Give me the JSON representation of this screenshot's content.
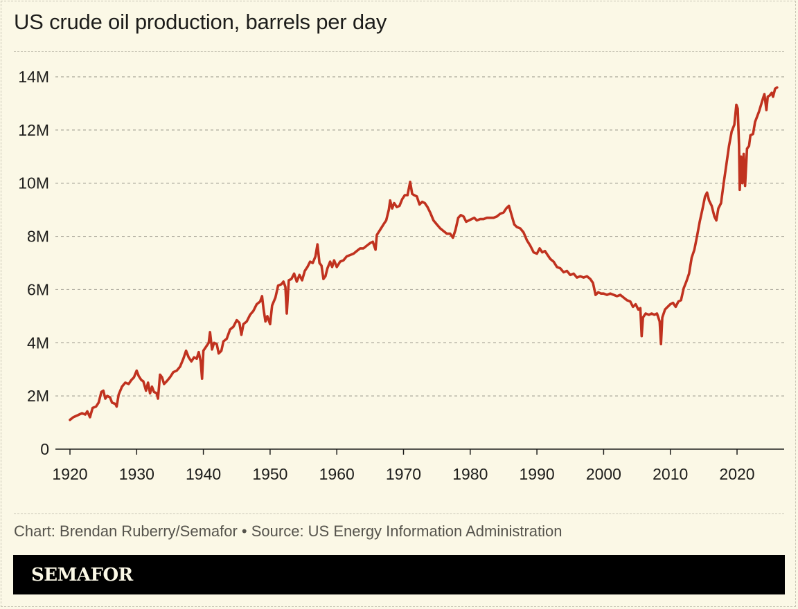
{
  "header": {
    "title": "US crude oil production, barrels per day"
  },
  "footer": {
    "credit": "Chart: Brendan Ruberry/Semafor • Source: US Energy Information Administration",
    "brand": "SEMAFOR"
  },
  "colors": {
    "background": "#fbf8e6",
    "line": "#c0321f",
    "text": "#1d1d1b",
    "gridline": "#aaa79a",
    "brand_bar": "#000000"
  },
  "chart_data": {
    "type": "line",
    "title": "US crude oil production, barrels per day",
    "xlabel": "",
    "ylabel": "",
    "xlim": [
      1918,
      2027
    ],
    "ylim": [
      0,
      14
    ],
    "y_unit": "millions of barrels per day",
    "grid": true,
    "legend": "none",
    "x_ticks": [
      1920,
      1930,
      1940,
      1950,
      1960,
      1970,
      1980,
      1990,
      2000,
      2010,
      2020
    ],
    "x_tick_labels": [
      "1920",
      "1930",
      "1940",
      "1950",
      "1960",
      "1970",
      "1980",
      "1990",
      "2000",
      "2010",
      "2020"
    ],
    "y_ticks": [
      0,
      2,
      4,
      6,
      8,
      10,
      12,
      14
    ],
    "y_tick_labels": [
      "0",
      "2M",
      "4M",
      "6M",
      "8M",
      "10M",
      "12M",
      "14M"
    ],
    "series": [
      {
        "name": "US crude oil production",
        "points": [
          [
            1920.0,
            1.1
          ],
          [
            1920.5,
            1.2
          ],
          [
            1921.2,
            1.28
          ],
          [
            1921.8,
            1.35
          ],
          [
            1922.3,
            1.3
          ],
          [
            1922.6,
            1.42
          ],
          [
            1923.0,
            1.2
          ],
          [
            1923.4,
            1.55
          ],
          [
            1923.9,
            1.6
          ],
          [
            1924.3,
            1.75
          ],
          [
            1924.7,
            2.15
          ],
          [
            1925.0,
            2.2
          ],
          [
            1925.3,
            1.9
          ],
          [
            1925.6,
            2.0
          ],
          [
            1926.0,
            1.95
          ],
          [
            1926.3,
            1.75
          ],
          [
            1926.8,
            1.7
          ],
          [
            1927.0,
            1.6
          ],
          [
            1927.3,
            2.05
          ],
          [
            1927.8,
            2.35
          ],
          [
            1928.3,
            2.5
          ],
          [
            1928.8,
            2.45
          ],
          [
            1929.2,
            2.6
          ],
          [
            1929.6,
            2.7
          ],
          [
            1930.0,
            2.95
          ],
          [
            1930.3,
            2.75
          ],
          [
            1930.7,
            2.6
          ],
          [
            1931.0,
            2.55
          ],
          [
            1931.4,
            2.2
          ],
          [
            1931.7,
            2.5
          ],
          [
            1932.0,
            2.1
          ],
          [
            1932.3,
            2.35
          ],
          [
            1932.6,
            2.15
          ],
          [
            1933.0,
            2.1
          ],
          [
            1933.2,
            1.9
          ],
          [
            1933.5,
            2.8
          ],
          [
            1933.8,
            2.7
          ],
          [
            1934.1,
            2.45
          ],
          [
            1934.5,
            2.55
          ],
          [
            1935.0,
            2.7
          ],
          [
            1935.5,
            2.9
          ],
          [
            1936.0,
            2.95
          ],
          [
            1936.5,
            3.1
          ],
          [
            1937.0,
            3.4
          ],
          [
            1937.4,
            3.7
          ],
          [
            1937.8,
            3.45
          ],
          [
            1938.2,
            3.3
          ],
          [
            1938.6,
            3.45
          ],
          [
            1939.0,
            3.4
          ],
          [
            1939.3,
            3.65
          ],
          [
            1939.6,
            3.3
          ],
          [
            1939.8,
            2.65
          ],
          [
            1940.0,
            3.7
          ],
          [
            1940.4,
            3.85
          ],
          [
            1940.8,
            4.0
          ],
          [
            1941.0,
            4.4
          ],
          [
            1941.3,
            3.75
          ],
          [
            1941.6,
            4.0
          ],
          [
            1942.0,
            3.95
          ],
          [
            1942.3,
            3.6
          ],
          [
            1942.7,
            3.7
          ],
          [
            1943.0,
            4.05
          ],
          [
            1943.5,
            4.15
          ],
          [
            1944.0,
            4.5
          ],
          [
            1944.5,
            4.6
          ],
          [
            1945.0,
            4.85
          ],
          [
            1945.4,
            4.75
          ],
          [
            1945.7,
            4.3
          ],
          [
            1946.0,
            4.7
          ],
          [
            1946.5,
            4.8
          ],
          [
            1947.0,
            5.05
          ],
          [
            1947.5,
            5.2
          ],
          [
            1948.0,
            5.45
          ],
          [
            1948.5,
            5.55
          ],
          [
            1948.8,
            5.75
          ],
          [
            1949.0,
            5.3
          ],
          [
            1949.3,
            4.8
          ],
          [
            1949.6,
            5.0
          ],
          [
            1950.0,
            4.7
          ],
          [
            1950.3,
            5.4
          ],
          [
            1950.8,
            5.7
          ],
          [
            1951.2,
            6.15
          ],
          [
            1951.7,
            6.2
          ],
          [
            1952.0,
            6.3
          ],
          [
            1952.3,
            6.1
          ],
          [
            1952.5,
            5.1
          ],
          [
            1952.8,
            6.35
          ],
          [
            1953.2,
            6.4
          ],
          [
            1953.6,
            6.6
          ],
          [
            1954.0,
            6.3
          ],
          [
            1954.4,
            6.55
          ],
          [
            1954.8,
            6.35
          ],
          [
            1955.2,
            6.7
          ],
          [
            1955.6,
            6.85
          ],
          [
            1956.0,
            7.05
          ],
          [
            1956.4,
            7.0
          ],
          [
            1956.8,
            7.25
          ],
          [
            1957.1,
            7.7
          ],
          [
            1957.4,
            7.0
          ],
          [
            1957.7,
            6.9
          ],
          [
            1958.0,
            6.4
          ],
          [
            1958.3,
            6.5
          ],
          [
            1958.6,
            6.8
          ],
          [
            1959.0,
            7.05
          ],
          [
            1959.3,
            6.85
          ],
          [
            1959.6,
            7.1
          ],
          [
            1960.0,
            6.85
          ],
          [
            1960.5,
            7.05
          ],
          [
            1961.0,
            7.1
          ],
          [
            1961.5,
            7.25
          ],
          [
            1962.0,
            7.3
          ],
          [
            1962.5,
            7.35
          ],
          [
            1963.0,
            7.45
          ],
          [
            1963.5,
            7.55
          ],
          [
            1964.0,
            7.55
          ],
          [
            1964.5,
            7.65
          ],
          [
            1965.0,
            7.75
          ],
          [
            1965.4,
            7.8
          ],
          [
            1965.8,
            7.5
          ],
          [
            1966.0,
            8.05
          ],
          [
            1966.5,
            8.25
          ],
          [
            1967.0,
            8.45
          ],
          [
            1967.4,
            8.6
          ],
          [
            1967.8,
            9.0
          ],
          [
            1968.0,
            9.35
          ],
          [
            1968.3,
            9.05
          ],
          [
            1968.6,
            9.25
          ],
          [
            1969.0,
            9.1
          ],
          [
            1969.4,
            9.15
          ],
          [
            1969.8,
            9.4
          ],
          [
            1970.2,
            9.55
          ],
          [
            1970.6,
            9.55
          ],
          [
            1971.0,
            10.05
          ],
          [
            1971.3,
            9.6
          ],
          [
            1971.6,
            9.55
          ],
          [
            1972.0,
            9.5
          ],
          [
            1972.4,
            9.2
          ],
          [
            1972.8,
            9.3
          ],
          [
            1973.2,
            9.25
          ],
          [
            1973.6,
            9.1
          ],
          [
            1974.0,
            8.9
          ],
          [
            1974.5,
            8.6
          ],
          [
            1975.0,
            8.45
          ],
          [
            1975.5,
            8.3
          ],
          [
            1976.0,
            8.2
          ],
          [
            1976.5,
            8.1
          ],
          [
            1977.0,
            8.1
          ],
          [
            1977.4,
            7.95
          ],
          [
            1977.8,
            8.25
          ],
          [
            1978.2,
            8.7
          ],
          [
            1978.6,
            8.8
          ],
          [
            1979.0,
            8.75
          ],
          [
            1979.4,
            8.55
          ],
          [
            1979.8,
            8.6
          ],
          [
            1980.2,
            8.65
          ],
          [
            1980.6,
            8.7
          ],
          [
            1981.0,
            8.6
          ],
          [
            1981.5,
            8.65
          ],
          [
            1982.0,
            8.65
          ],
          [
            1982.5,
            8.7
          ],
          [
            1983.0,
            8.7
          ],
          [
            1983.5,
            8.7
          ],
          [
            1984.0,
            8.75
          ],
          [
            1984.5,
            8.85
          ],
          [
            1985.0,
            8.9
          ],
          [
            1985.4,
            9.05
          ],
          [
            1985.8,
            9.15
          ],
          [
            1986.2,
            8.8
          ],
          [
            1986.6,
            8.45
          ],
          [
            1987.0,
            8.35
          ],
          [
            1987.5,
            8.3
          ],
          [
            1988.0,
            8.15
          ],
          [
            1988.5,
            7.85
          ],
          [
            1989.0,
            7.65
          ],
          [
            1989.5,
            7.4
          ],
          [
            1990.0,
            7.35
          ],
          [
            1990.4,
            7.55
          ],
          [
            1990.8,
            7.4
          ],
          [
            1991.2,
            7.45
          ],
          [
            1991.6,
            7.3
          ],
          [
            1992.0,
            7.15
          ],
          [
            1992.5,
            7.05
          ],
          [
            1993.0,
            6.85
          ],
          [
            1993.5,
            6.8
          ],
          [
            1994.0,
            6.65
          ],
          [
            1994.5,
            6.7
          ],
          [
            1995.0,
            6.55
          ],
          [
            1995.5,
            6.6
          ],
          [
            1996.0,
            6.45
          ],
          [
            1996.5,
            6.5
          ],
          [
            1997.0,
            6.45
          ],
          [
            1997.5,
            6.5
          ],
          [
            1998.0,
            6.4
          ],
          [
            1998.4,
            6.25
          ],
          [
            1998.8,
            5.8
          ],
          [
            1999.2,
            5.9
          ],
          [
            1999.6,
            5.85
          ],
          [
            2000.0,
            5.85
          ],
          [
            2000.5,
            5.8
          ],
          [
            2001.0,
            5.85
          ],
          [
            2001.5,
            5.8
          ],
          [
            2002.0,
            5.75
          ],
          [
            2002.5,
            5.8
          ],
          [
            2003.0,
            5.7
          ],
          [
            2003.5,
            5.6
          ],
          [
            2004.0,
            5.55
          ],
          [
            2004.4,
            5.35
          ],
          [
            2004.8,
            5.45
          ],
          [
            2005.2,
            5.25
          ],
          [
            2005.5,
            5.3
          ],
          [
            2005.7,
            4.25
          ],
          [
            2005.9,
            4.95
          ],
          [
            2006.3,
            5.1
          ],
          [
            2006.8,
            5.05
          ],
          [
            2007.2,
            5.1
          ],
          [
            2007.6,
            5.05
          ],
          [
            2008.0,
            5.1
          ],
          [
            2008.4,
            4.8
          ],
          [
            2008.6,
            3.95
          ],
          [
            2008.8,
            4.95
          ],
          [
            2009.2,
            5.25
          ],
          [
            2009.6,
            5.35
          ],
          [
            2010.0,
            5.45
          ],
          [
            2010.4,
            5.5
          ],
          [
            2010.8,
            5.35
          ],
          [
            2011.2,
            5.55
          ],
          [
            2011.6,
            5.6
          ],
          [
            2012.0,
            6.05
          ],
          [
            2012.4,
            6.3
          ],
          [
            2012.8,
            6.6
          ],
          [
            2013.2,
            7.2
          ],
          [
            2013.6,
            7.5
          ],
          [
            2014.0,
            8.0
          ],
          [
            2014.4,
            8.55
          ],
          [
            2014.8,
            9.0
          ],
          [
            2015.2,
            9.5
          ],
          [
            2015.5,
            9.65
          ],
          [
            2015.8,
            9.35
          ],
          [
            2016.2,
            9.15
          ],
          [
            2016.6,
            8.75
          ],
          [
            2016.9,
            8.6
          ],
          [
            2017.2,
            9.05
          ],
          [
            2017.6,
            9.25
          ],
          [
            2018.0,
            10.0
          ],
          [
            2018.4,
            10.7
          ],
          [
            2018.8,
            11.4
          ],
          [
            2019.2,
            11.95
          ],
          [
            2019.6,
            12.2
          ],
          [
            2019.9,
            12.95
          ],
          [
            2020.1,
            12.8
          ],
          [
            2020.3,
            11.4
          ],
          [
            2020.4,
            9.75
          ],
          [
            2020.6,
            11.0
          ],
          [
            2020.8,
            10.0
          ],
          [
            2021.0,
            11.1
          ],
          [
            2021.2,
            9.9
          ],
          [
            2021.5,
            11.3
          ],
          [
            2021.8,
            11.4
          ],
          [
            2022.0,
            11.8
          ],
          [
            2022.4,
            11.85
          ],
          [
            2022.7,
            12.3
          ],
          [
            2023.0,
            12.5
          ],
          [
            2023.3,
            12.7
          ],
          [
            2023.6,
            12.95
          ],
          [
            2023.9,
            13.2
          ],
          [
            2024.1,
            13.35
          ],
          [
            2024.4,
            12.75
          ],
          [
            2024.6,
            13.25
          ],
          [
            2024.9,
            13.3
          ],
          [
            2025.2,
            13.4
          ],
          [
            2025.4,
            13.25
          ],
          [
            2025.7,
            13.55
          ],
          [
            2026.0,
            13.6
          ]
        ]
      }
    ]
  }
}
